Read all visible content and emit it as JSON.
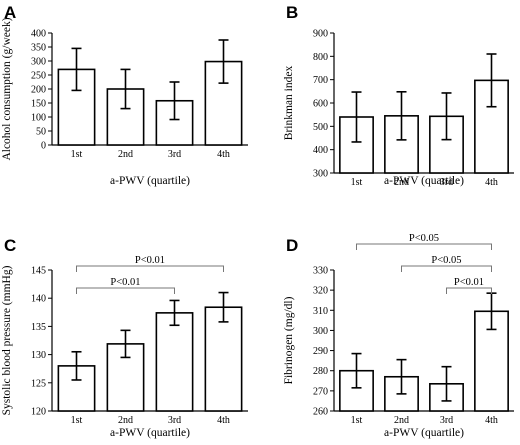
{
  "chart_data": [
    {
      "panel": "A",
      "type": "bar",
      "categories": [
        "1st",
        "2nd",
        "3rd",
        "4th"
      ],
      "values": [
        270,
        200,
        158,
        298
      ],
      "errors": [
        75,
        70,
        67,
        77
      ],
      "xlabel": "a-PWV (quartile)",
      "ylabel": "Alcohol consumption (g/week)",
      "ylim": [
        0,
        400
      ],
      "yticks": [
        0,
        50,
        100,
        150,
        200,
        250,
        300,
        350,
        400
      ],
      "comparisons": []
    },
    {
      "panel": "B",
      "type": "bar",
      "categories": [
        "1st",
        "2nd",
        "3rd",
        "4th"
      ],
      "values": [
        540,
        545,
        543,
        697
      ],
      "errors": [
        107,
        103,
        100,
        113
      ],
      "xlabel": "a-PWV (quartile)",
      "ylabel": "Brinkman index",
      "ylim": [
        300,
        900
      ],
      "yticks": [
        300,
        400,
        500,
        600,
        700,
        800,
        900
      ],
      "comparisons": []
    },
    {
      "panel": "C",
      "type": "bar",
      "categories": [
        "1st",
        "2nd",
        "3rd",
        "4th"
      ],
      "values": [
        128.0,
        131.9,
        137.4,
        138.4
      ],
      "errors": [
        2.5,
        2.4,
        2.2,
        2.6
      ],
      "xlabel": "a-PWV (quartile)",
      "ylabel": "Systolic blood pressure (mmHg)",
      "ylim": [
        120,
        145
      ],
      "yticks": [
        120,
        125,
        130,
        135,
        140,
        145
      ],
      "comparisons": [
        {
          "label": "P<0.01",
          "from": 0,
          "to": 3,
          "level": 0
        },
        {
          "label": "P<0.01",
          "from": 0,
          "to": 2,
          "level": 1
        }
      ]
    },
    {
      "panel": "D",
      "type": "bar",
      "categories": [
        "1st",
        "2nd",
        "3rd",
        "4th"
      ],
      "values": [
        280,
        277,
        273.5,
        309.5
      ],
      "errors": [
        8.5,
        8.5,
        8.5,
        9
      ],
      "xlabel": "a-PWV (quartile)",
      "ylabel": "Fibrinogen (mg/dl)",
      "ylim": [
        260,
        330
      ],
      "yticks": [
        260,
        270,
        280,
        290,
        300,
        310,
        320,
        330
      ],
      "comparisons": [
        {
          "label": "P<0.05",
          "from": 0,
          "to": 3,
          "level": 0
        },
        {
          "label": "P<0.05",
          "from": 1,
          "to": 3,
          "level": 1
        },
        {
          "label": "P<0.01",
          "from": 2,
          "to": 3,
          "level": 2
        }
      ]
    }
  ]
}
